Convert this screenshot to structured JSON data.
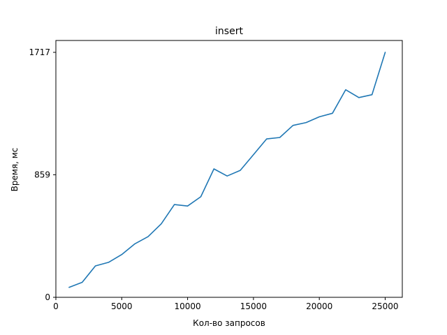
{
  "chart_data": {
    "type": "line",
    "title": "insert",
    "xlabel": "Кол-во запросов",
    "ylabel": "Время, мс",
    "xlim": [
      0,
      26300
    ],
    "ylim": [
      0,
      1717
    ],
    "xticks": [
      0,
      5000,
      10000,
      15000,
      20000,
      25000
    ],
    "xtick_labels": [
      "0",
      "5000",
      "10000",
      "15000",
      "20000",
      "25000"
    ],
    "yticks": [
      0,
      859,
      1717
    ],
    "ytick_labels": [
      "0",
      "859",
      "1717"
    ],
    "grid": false,
    "series": [
      {
        "color": "#1f77b4",
        "x": [
          1000,
          2000,
          3000,
          4000,
          5000,
          6000,
          7000,
          8000,
          9000,
          10000,
          11000,
          12000,
          13000,
          14000,
          15000,
          16000,
          17000,
          18000,
          19000,
          20000,
          21000,
          22000,
          23000,
          24000,
          25000
        ],
        "y": [
          70,
          105,
          220,
          245,
          300,
          375,
          425,
          515,
          650,
          640,
          705,
          900,
          850,
          890,
          1000,
          1110,
          1120,
          1205,
          1225,
          1265,
          1290,
          1455,
          1400,
          1420,
          1717
        ]
      }
    ]
  }
}
